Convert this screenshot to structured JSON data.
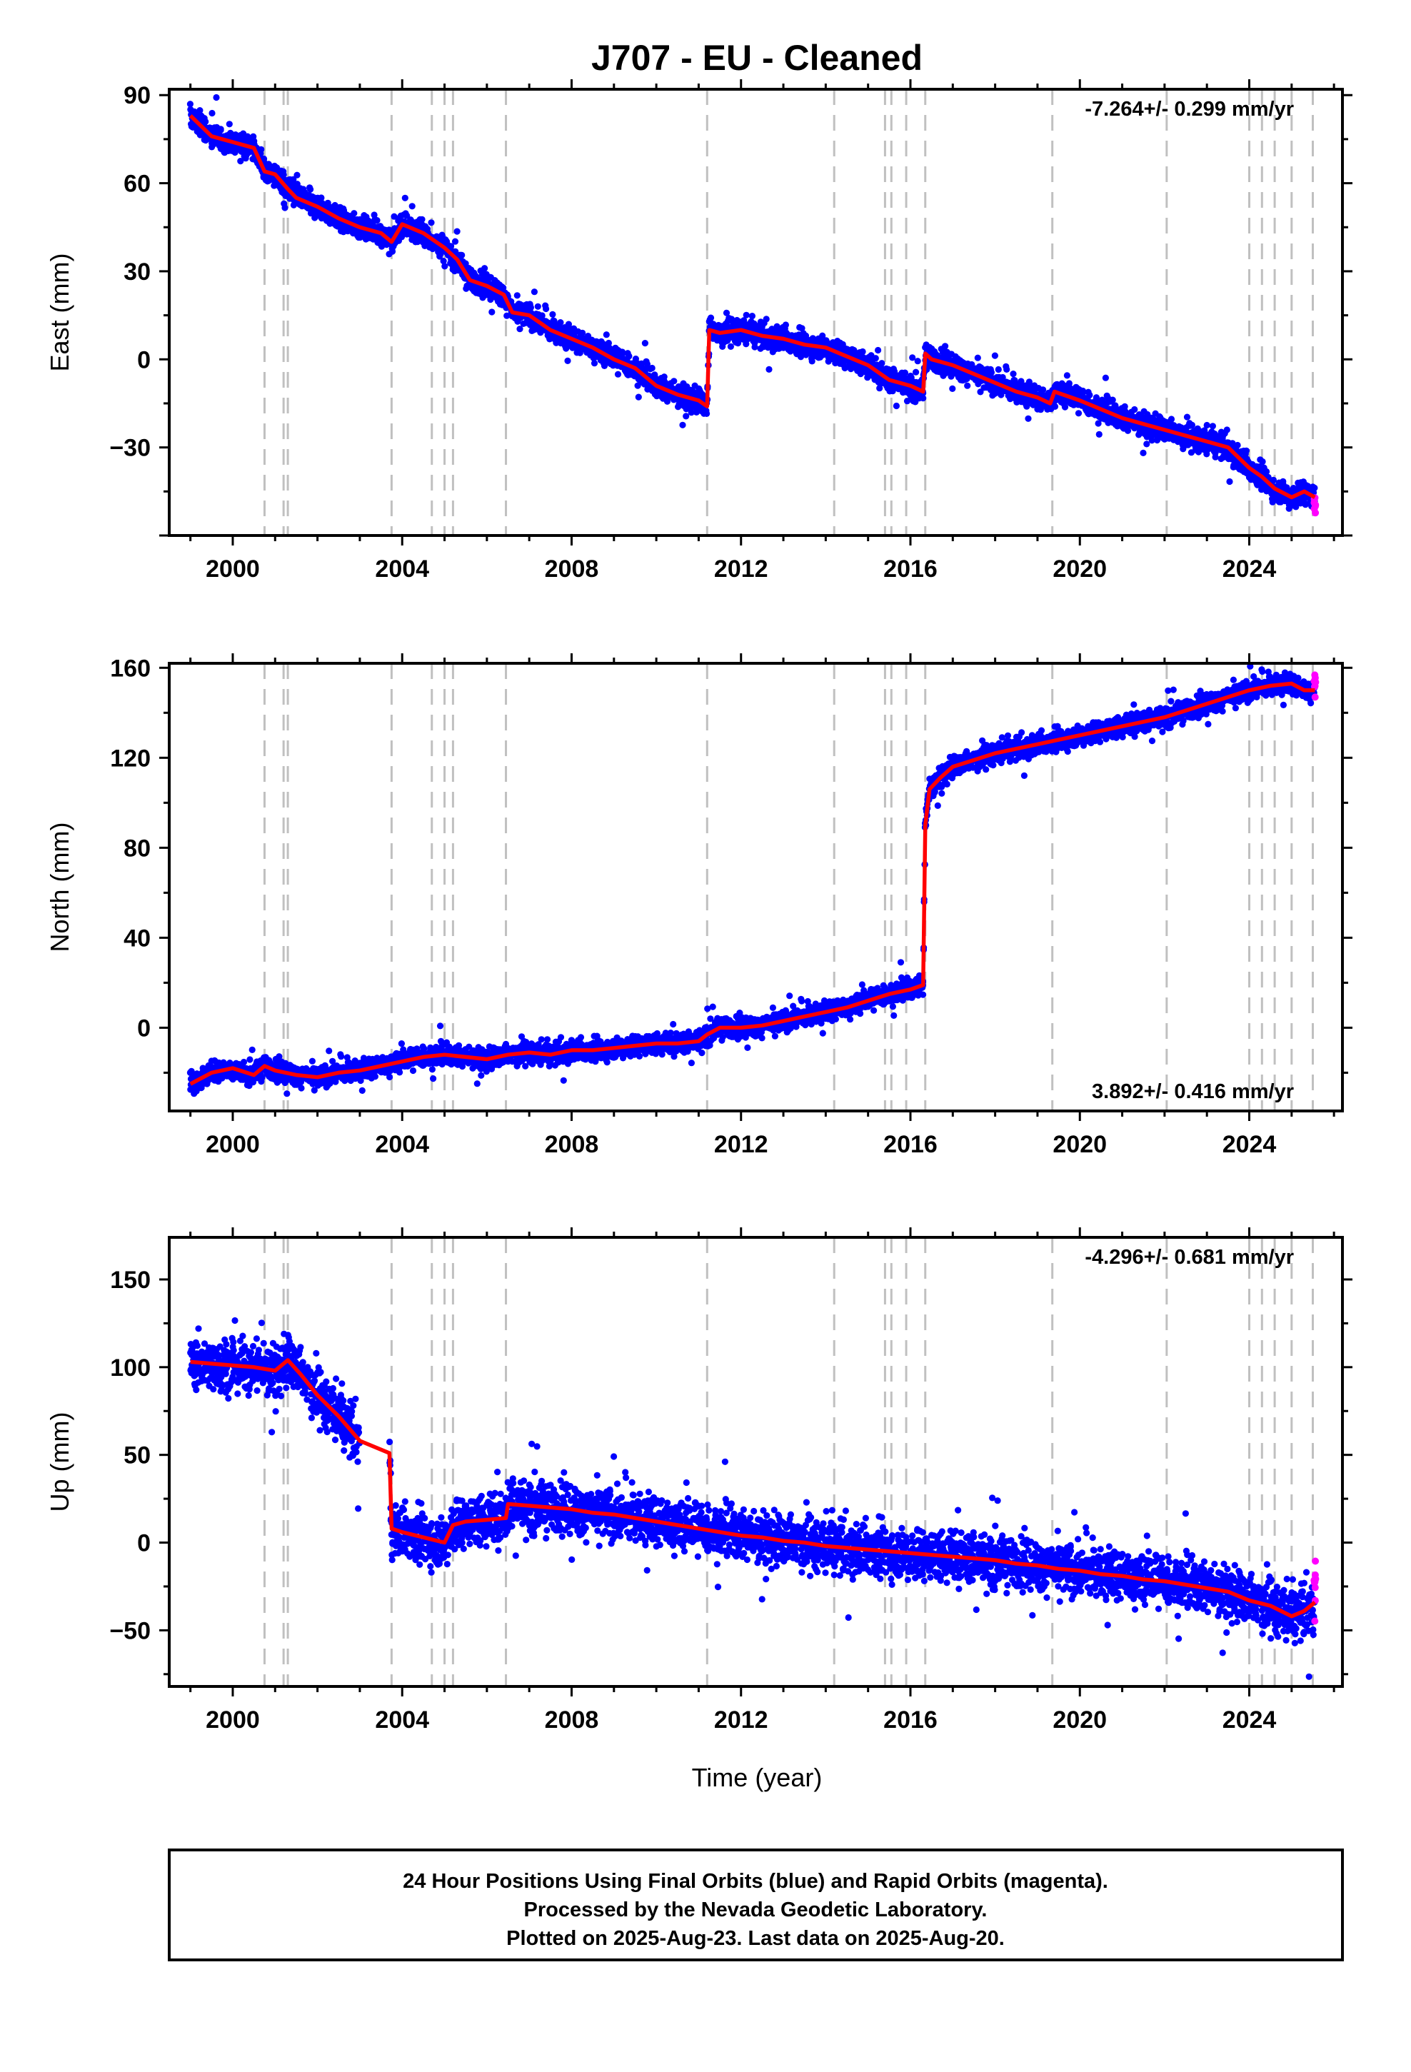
{
  "chart_data": {
    "title": "J707  - EU - Cleaned",
    "xlabel": "Time (year)",
    "x_ticks": [
      "2000",
      "2004",
      "2008",
      "2012",
      "2016",
      "2020",
      "2024"
    ],
    "xlim": [
      1998.5,
      2026.2
    ],
    "colors": {
      "final": "#0000ff",
      "rapid": "#ff00ff",
      "model": "#ff0000",
      "event": "#c0c0c0"
    },
    "event_lines": [
      2000.75,
      2001.2,
      2001.3,
      2003.75,
      2004.7,
      2005.0,
      2005.2,
      2006.45,
      2011.2,
      2014.2,
      2015.4,
      2015.55,
      2015.9,
      2016.35,
      2019.35,
      2022.05,
      2024.0,
      2024.3,
      2024.6,
      2025.0,
      2025.5
    ],
    "panels": [
      {
        "type": "scatter",
        "ylabel": "East (mm)",
        "ylim": [
          -60,
          92
        ],
        "y_ticks": [
          "90",
          "60",
          "30",
          "0",
          "−30"
        ],
        "y_tick_values": [
          90,
          60,
          30,
          0,
          -30
        ],
        "rate": "-7.264+/- 0.299 mm/yr",
        "rate_position": "top-right",
        "scatter_spread_mm": 2.8,
        "series": [
          {
            "name": "Final Orbits",
            "color": "blue",
            "x": [
              1999.0,
              1999.5,
              2000.0,
              2000.5,
              2000.75,
              2001.0,
              2001.3,
              2001.5,
              2002.0,
              2002.5,
              2003.0,
              2003.5,
              2003.75,
              2004.0,
              2004.5,
              2005.0,
              2005.3,
              2005.6,
              2006.0,
              2006.4,
              2006.6,
              2007.0,
              2007.5,
              2008.0,
              2008.5,
              2009.0,
              2009.5,
              2010.0,
              2010.5,
              2011.0,
              2011.2,
              2011.25,
              2011.5,
              2012.0,
              2012.5,
              2013.0,
              2013.5,
              2014.0,
              2014.5,
              2015.0,
              2015.5,
              2016.0,
              2016.3,
              2016.35,
              2016.5,
              2017.0,
              2017.5,
              2018.0,
              2018.5,
              2019.0,
              2019.3,
              2019.4,
              2019.6,
              2020.0,
              2020.5,
              2021.0,
              2021.5,
              2022.0,
              2022.5,
              2023.0,
              2023.5,
              2024.0,
              2024.3,
              2024.6,
              2025.0,
              2025.3,
              2025.55
            ],
            "y": [
              83,
              76,
              74,
              72,
              64,
              63,
              58,
              55,
              52,
              48,
              45,
              43,
              40,
              46,
              43,
              38,
              34,
              27,
              25,
              22,
              16,
              15,
              10,
              7,
              4,
              0,
              -3,
              -9,
              -12,
              -14,
              -16,
              10,
              9,
              10,
              8,
              7,
              5,
              4,
              1,
              -2,
              -7,
              -9,
              -11,
              2,
              0,
              -2,
              -5,
              -8,
              -11,
              -13,
              -15,
              -11,
              -12,
              -14,
              -17,
              -20,
              -22,
              -24,
              -26,
              -28,
              -30,
              -37,
              -40,
              -44,
              -47,
              -45,
              -47
            ]
          },
          {
            "name": "Rapid Orbits",
            "color": "magenta",
            "x": [
              2025.55
            ],
            "y": [
              -48
            ]
          }
        ]
      },
      {
        "type": "scatter",
        "ylabel": "North (mm)",
        "ylim": [
          -37,
          162
        ],
        "y_ticks": [
          "160",
          "120",
          "80",
          "40",
          "0"
        ],
        "y_tick_values": [
          160,
          120,
          80,
          40,
          0
        ],
        "rate": "3.892+/- 0.416 mm/yr",
        "rate_position": "bottom-right",
        "scatter_spread_mm": 3.2,
        "series": [
          {
            "name": "Final Orbits",
            "color": "blue",
            "x": [
              1999.0,
              1999.5,
              2000.0,
              2000.5,
              2000.75,
              2001.0,
              2001.5,
              2002.0,
              2002.5,
              2003.0,
              2003.5,
              2004.0,
              2004.5,
              2005.0,
              2005.5,
              2006.0,
              2006.5,
              2007.0,
              2007.5,
              2008.0,
              2008.5,
              2009.0,
              2009.5,
              2010.0,
              2010.5,
              2011.0,
              2011.2,
              2011.5,
              2012.0,
              2012.5,
              2013.0,
              2013.5,
              2014.0,
              2014.5,
              2015.0,
              2015.5,
              2016.0,
              2016.3,
              2016.35,
              2016.45,
              2016.7,
              2017.0,
              2017.5,
              2018.0,
              2018.5,
              2019.0,
              2019.5,
              2020.0,
              2020.5,
              2021.0,
              2021.5,
              2022.0,
              2022.5,
              2023.0,
              2023.5,
              2024.0,
              2024.5,
              2025.0,
              2025.3,
              2025.55
            ],
            "y": [
              -25,
              -20,
              -18,
              -21,
              -17,
              -19,
              -21,
              -22,
              -20,
              -19,
              -17,
              -15,
              -13,
              -12,
              -13,
              -14,
              -12,
              -11,
              -12,
              -10,
              -10,
              -9,
              -8,
              -7,
              -7,
              -6,
              -3,
              0,
              0,
              1,
              3,
              5,
              7,
              9,
              12,
              15,
              17,
              19,
              90,
              106,
              111,
              116,
              119,
              122,
              124,
              126,
              128,
              130,
              132,
              134,
              136,
              138,
              141,
              144,
              147,
              150,
              152,
              153,
              150,
              150
            ]
          },
          {
            "name": "Rapid Orbits",
            "color": "magenta",
            "x": [
              2025.55
            ],
            "y": [
              153
            ]
          }
        ]
      },
      {
        "type": "scatter",
        "ylabel": "Up (mm)",
        "ylim": [
          -82,
          174
        ],
        "y_ticks": [
          "150",
          "100",
          "50",
          "0",
          "−50"
        ],
        "y_tick_values": [
          150,
          100,
          50,
          0,
          -50
        ],
        "rate": "-4.296+/- 0.681 mm/yr",
        "rate_position": "top-right",
        "scatter_spread_mm": 10,
        "data_gap": [
          2003.0,
          2003.7
        ],
        "series": [
          {
            "name": "Final Orbits",
            "color": "blue",
            "x": [
              1999.0,
              1999.5,
              2000.0,
              2000.5,
              2000.75,
              2001.0,
              2001.3,
              2001.6,
              2002.0,
              2002.5,
              2003.0,
              2003.7,
              2003.75,
              2004.0,
              2004.5,
              2005.0,
              2005.2,
              2005.5,
              2006.0,
              2006.45,
              2006.5,
              2007.0,
              2007.5,
              2008.0,
              2008.5,
              2009.0,
              2009.5,
              2010.0,
              2010.5,
              2011.0,
              2011.5,
              2012.0,
              2012.5,
              2013.0,
              2013.5,
              2014.0,
              2014.5,
              2015.0,
              2015.5,
              2016.0,
              2016.5,
              2017.0,
              2017.5,
              2018.0,
              2018.5,
              2019.0,
              2019.5,
              2020.0,
              2020.5,
              2021.0,
              2021.5,
              2022.0,
              2022.5,
              2023.0,
              2023.5,
              2024.0,
              2024.5,
              2025.0,
              2025.3,
              2025.55
            ],
            "y": [
              103,
              102,
              101,
              100,
              99,
              98,
              104,
              96,
              84,
              72,
              58,
              51,
              8,
              6,
              3,
              0,
              10,
              12,
              13,
              14,
              22,
              21,
              20,
              19,
              17,
              16,
              14,
              12,
              10,
              8,
              6,
              4,
              3,
              1,
              0,
              -2,
              -3,
              -4,
              -5,
              -6,
              -7,
              -8,
              -9,
              -10,
              -12,
              -13,
              -15,
              -16,
              -18,
              -19,
              -21,
              -22,
              -24,
              -26,
              -28,
              -33,
              -36,
              -42,
              -39,
              -34
            ]
          },
          {
            "name": "Rapid Orbits",
            "color": "magenta",
            "x": [
              2025.55
            ],
            "y": [
              -24
            ]
          }
        ]
      }
    ]
  },
  "footer": {
    "line1": "24 Hour Positions Using Final Orbits (blue) and Rapid Orbits (magenta).",
    "line2": "Processed by the Nevada Geodetic Laboratory.",
    "line3": "Plotted on 2025-Aug-23. Last data on 2025-Aug-20."
  }
}
